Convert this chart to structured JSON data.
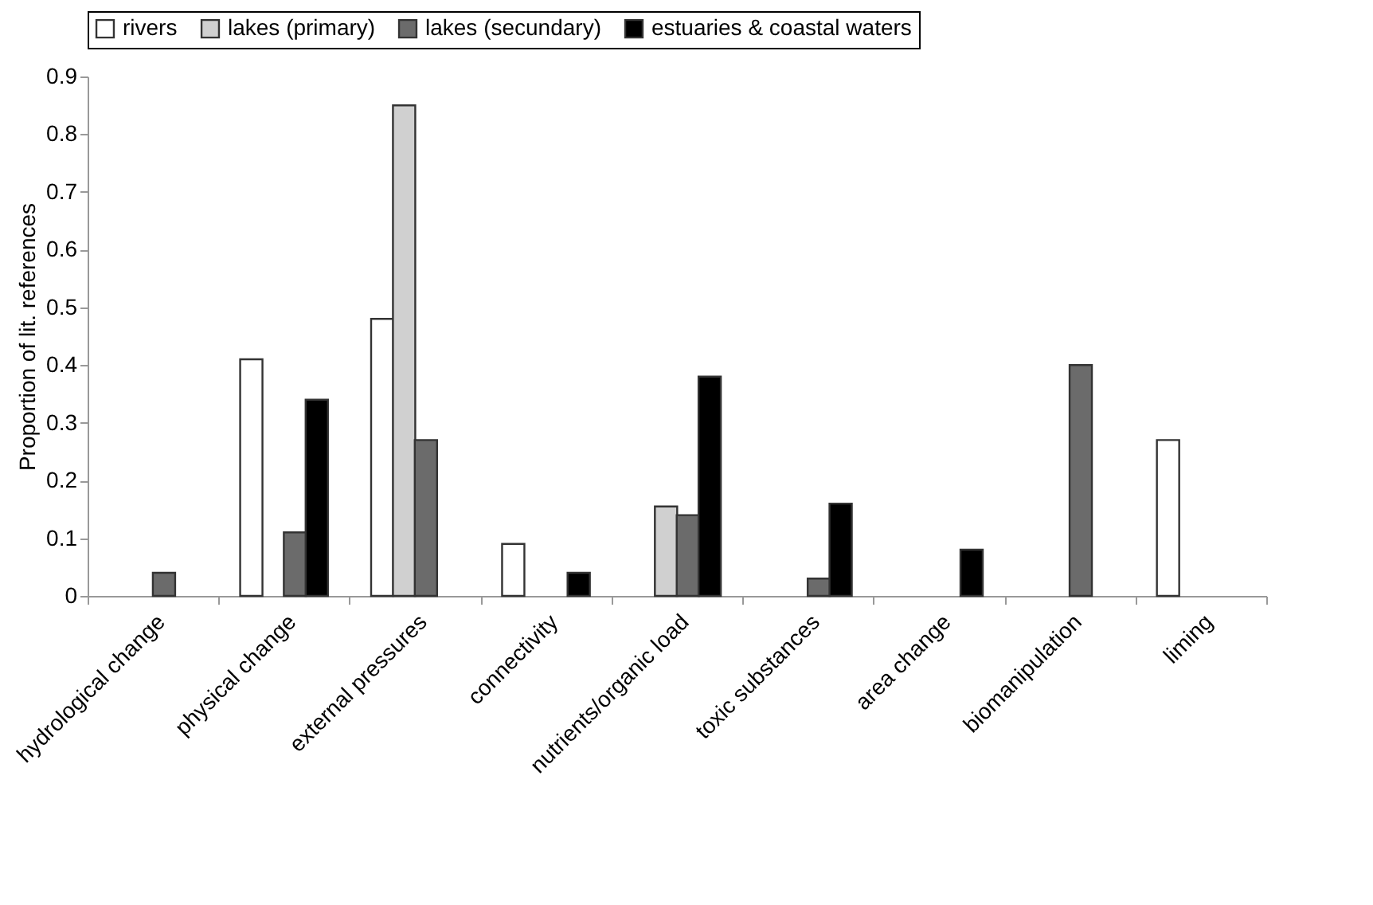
{
  "chart_data": {
    "type": "bar",
    "ylabel": "Proportion of lit. references",
    "categories": [
      "hydrological change",
      "physical change",
      "external pressures",
      "connectivity",
      "nutrients/organic load",
      "toxic substances",
      "area change",
      "biomanipulation",
      "liming"
    ],
    "series": [
      {
        "name": "rivers",
        "color": "#ffffff",
        "values": [
          null,
          0.41,
          0.48,
          0.09,
          null,
          null,
          null,
          null,
          0.27
        ]
      },
      {
        "name": "lakes (primary)",
        "color": "#d0d0d0",
        "values": [
          null,
          null,
          0.85,
          null,
          0.155,
          null,
          null,
          null,
          null
        ]
      },
      {
        "name": "lakes (secundary)",
        "color": "#6b6b6b",
        "values": [
          0.04,
          0.11,
          0.27,
          null,
          0.14,
          0.03,
          null,
          0.4,
          null
        ]
      },
      {
        "name": "estuaries & coastal waters",
        "color": "#000000",
        "values": [
          null,
          0.34,
          null,
          0.04,
          0.38,
          0.16,
          0.08,
          null,
          null
        ]
      }
    ],
    "ylim": [
      0,
      0.9
    ],
    "yticks": [
      0,
      0.1,
      0.2,
      0.3,
      0.4,
      0.5,
      0.6,
      0.7,
      0.8,
      0.9
    ],
    "grid": false,
    "legend": "top"
  }
}
